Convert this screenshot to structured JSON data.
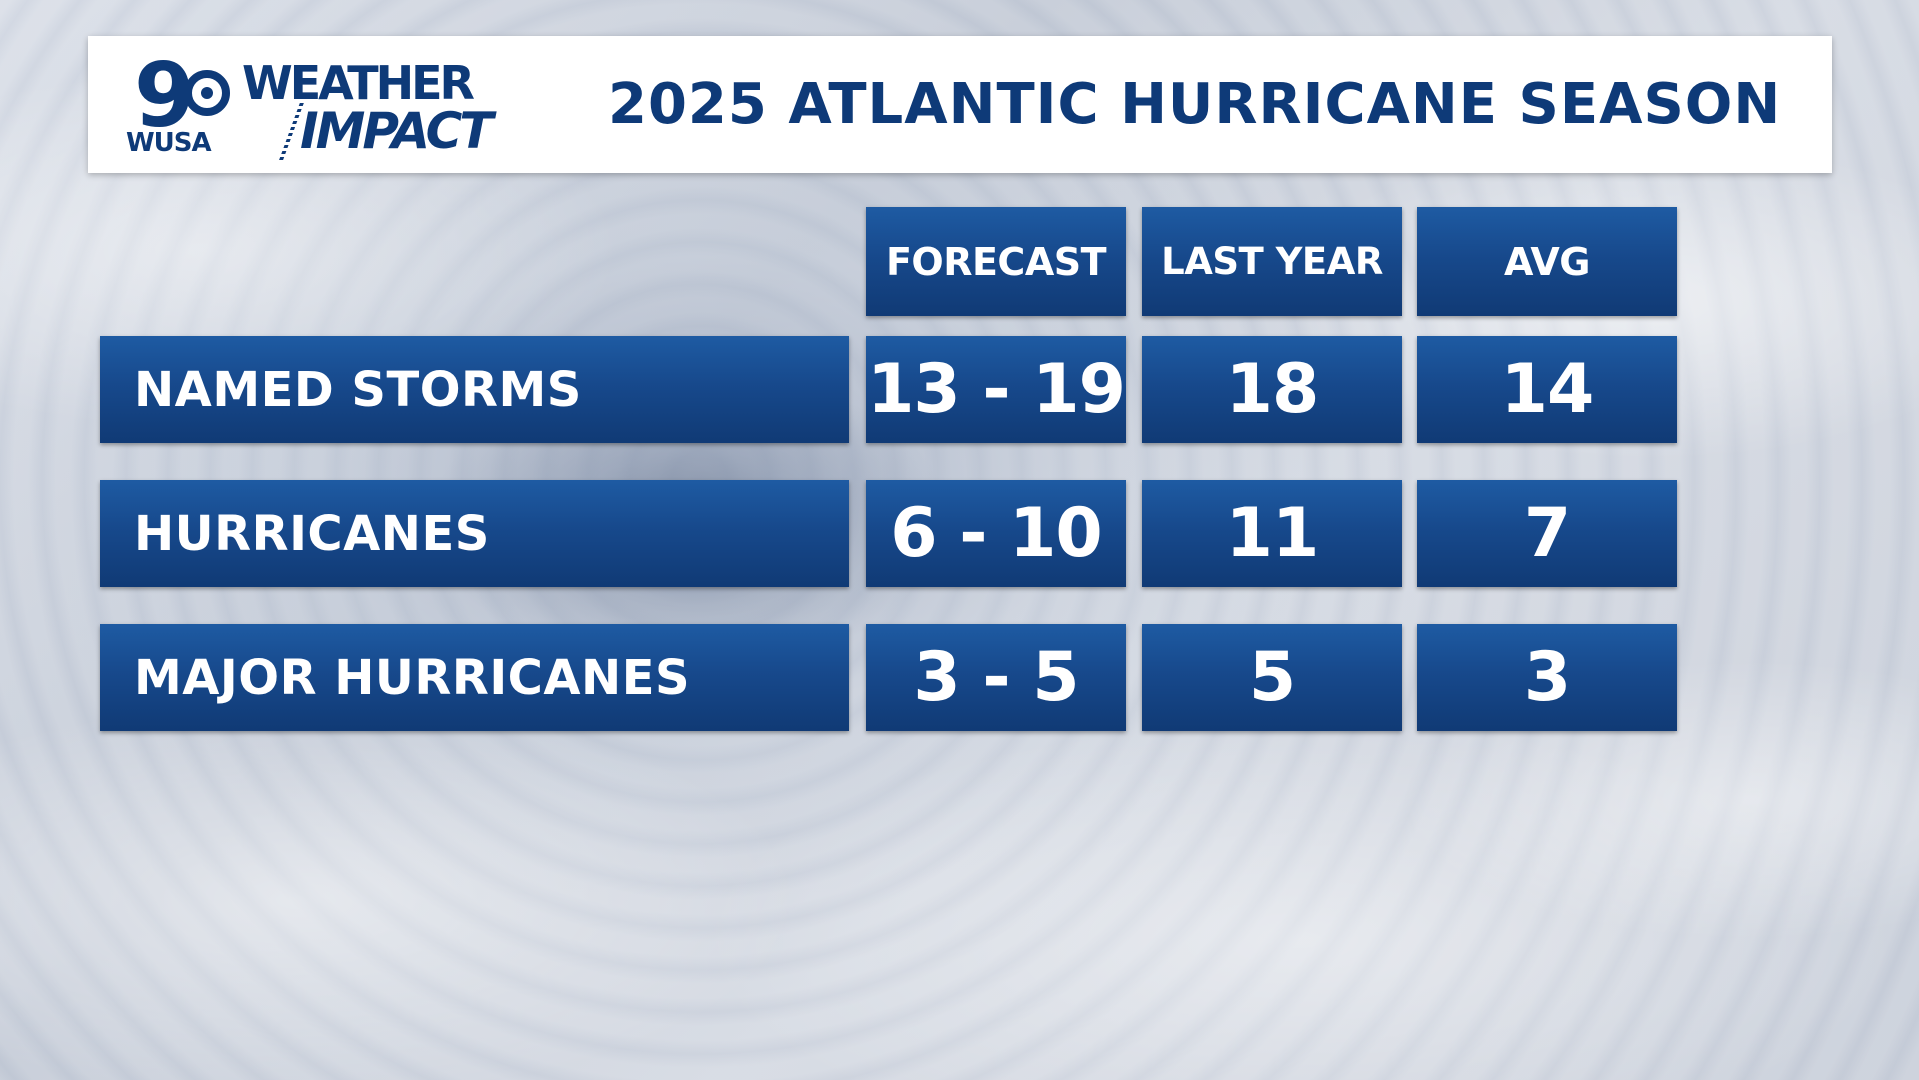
{
  "brand": {
    "channel_number": "9",
    "station": "WUSA",
    "weather_word": "WEATHER",
    "impact_word": "IMPACT"
  },
  "header": {
    "title": "2025 ATLANTIC HURRICANE SEASON"
  },
  "colors": {
    "navy_text": "#0e3a78",
    "cell_blue": "#17498c",
    "header_bg": "#ffffff"
  },
  "chart_data": {
    "type": "table",
    "title": "2025 ATLANTIC HURRICANE SEASON",
    "columns": [
      "FORECAST",
      "LAST YEAR",
      "AVG"
    ],
    "rows": [
      {
        "label": "NAMED STORMS",
        "forecast": "13 - 19",
        "last_year": "18",
        "avg": "14"
      },
      {
        "label": "HURRICANES",
        "forecast": "6 - 10",
        "last_year": "11",
        "avg": "7"
      },
      {
        "label": "MAJOR HURRICANES",
        "forecast": "3 - 5",
        "last_year": "5",
        "avg": "3"
      }
    ]
  }
}
